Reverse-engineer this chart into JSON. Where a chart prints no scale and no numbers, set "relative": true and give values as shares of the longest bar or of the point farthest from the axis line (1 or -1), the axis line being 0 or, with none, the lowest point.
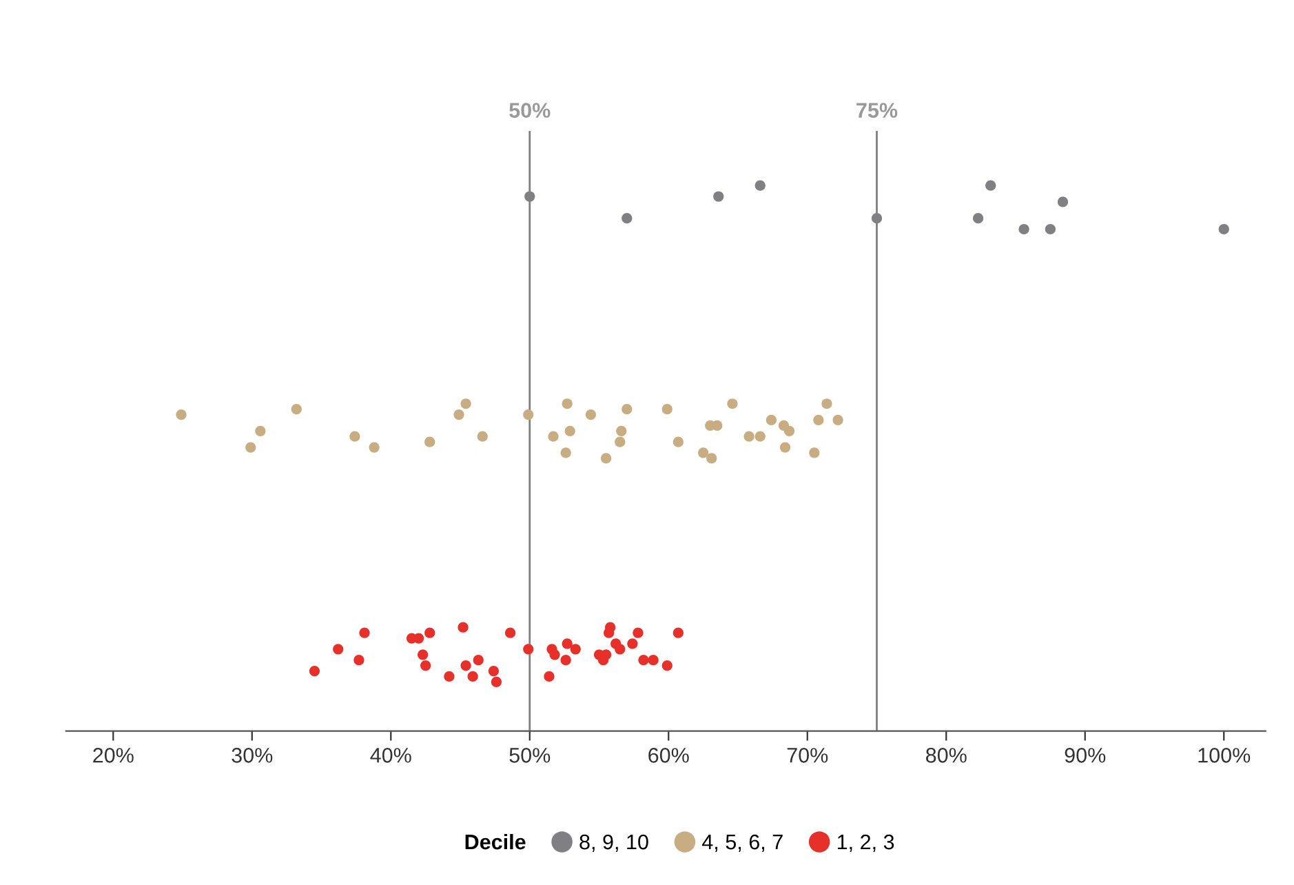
{
  "chart_data": {
    "type": "scatter",
    "relative": true,
    "legend_title": "Decile",
    "legend": "bottom",
    "grid": false,
    "marker": "circle",
    "tick_labels": "x",
    "xlim": [
      16.6,
      103.0
    ],
    "xticks": [
      {
        "value": 20,
        "label": "20%"
      },
      {
        "value": 30,
        "label": "30%"
      },
      {
        "value": 40,
        "label": "40%"
      },
      {
        "value": 50,
        "label": "50%"
      },
      {
        "value": 60,
        "label": "60%"
      },
      {
        "value": 70,
        "label": "70%"
      },
      {
        "value": 80,
        "label": "80%"
      },
      {
        "value": 90,
        "label": "90%"
      },
      {
        "value": 100,
        "label": "100%"
      }
    ],
    "ref_lines": [
      {
        "axis": "x",
        "value": 50,
        "label": "50%",
        "color": "#7f7f7f"
      },
      {
        "axis": "x",
        "value": 75,
        "label": "75%",
        "color": "#7f7f7f"
      }
    ],
    "series": [
      {
        "name": "8, 9, 10",
        "color": "#807f83",
        "x": [
          50,
          57.0,
          63.6,
          66.6,
          75,
          82.3,
          83.2,
          85.6,
          87.5,
          88.4,
          100
        ],
        "values": [
          0.98,
          0.94,
          0.98,
          1.0,
          0.94,
          0.94,
          1.0,
          0.92,
          0.92,
          0.97,
          0.92
        ]
      },
      {
        "name": "4, 5, 6, 7",
        "color": "#c9ad82",
        "x": [
          24.9,
          29.9,
          30.6,
          33.2,
          37.4,
          38.8,
          42.8,
          44.9,
          45.4,
          46.6,
          49.9,
          51.7,
          52.7,
          52.9,
          52.6,
          54.4,
          55.5,
          56.6,
          56.5,
          57.0,
          59.9,
          60.7,
          62.5,
          63.1,
          63.0,
          63.5,
          64.6,
          65.8,
          66.6,
          67.4,
          68.3,
          68.7,
          68.4,
          70.5,
          70.8,
          71.4,
          72.2
        ],
        "values": [
          0.58,
          0.52,
          0.55,
          0.59,
          0.54,
          0.52,
          0.53,
          0.58,
          0.6,
          0.54,
          0.58,
          0.54,
          0.6,
          0.55,
          0.51,
          0.58,
          0.5,
          0.55,
          0.53,
          0.59,
          0.59,
          0.53,
          0.51,
          0.5,
          0.56,
          0.56,
          0.6,
          0.54,
          0.54,
          0.57,
          0.56,
          0.55,
          0.52,
          0.51,
          0.57,
          0.6,
          0.57
        ]
      },
      {
        "name": "1, 2, 3",
        "color": "#e8302a",
        "x": [
          34.5,
          36.2,
          37.7,
          38.1,
          41.5,
          42.0,
          42.8,
          42.3,
          42.5,
          44.2,
          45.2,
          45.4,
          45.9,
          46.3,
          47.4,
          47.6,
          48.6,
          49.9,
          51.6,
          51.8,
          52.7,
          53.3,
          52.6,
          51.4,
          55.8,
          55.7,
          57.8,
          60.7,
          55.0,
          55.3,
          55.5,
          56.2,
          56.5,
          57.4,
          58.2,
          58.9,
          59.9
        ],
        "values": [
          0.11,
          0.15,
          0.13,
          0.18,
          0.17,
          0.17,
          0.18,
          0.14,
          0.12,
          0.1,
          0.19,
          0.12,
          0.1,
          0.13,
          0.11,
          0.09,
          0.18,
          0.15,
          0.15,
          0.14,
          0.16,
          0.15,
          0.13,
          0.1,
          0.19,
          0.18,
          0.18,
          0.18,
          0.14,
          0.13,
          0.14,
          0.16,
          0.15,
          0.16,
          0.13,
          0.13,
          0.12
        ]
      }
    ]
  }
}
